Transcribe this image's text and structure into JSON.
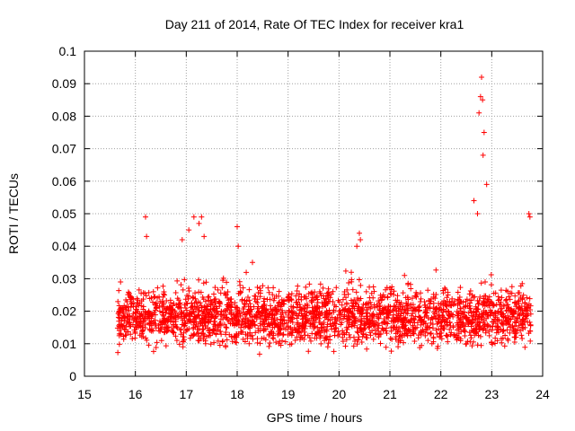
{
  "chart_data": {
    "type": "scatter",
    "title": "Day 211 of 2014, Rate Of TEC Index for receiver kra1",
    "xlabel": "GPS time / hours",
    "ylabel": "ROTI / TECUs",
    "xlim": [
      15,
      24
    ],
    "ylim": [
      0,
      0.1
    ],
    "xticks": [
      "15",
      "16",
      "17",
      "18",
      "19",
      "20",
      "21",
      "22",
      "23",
      "24"
    ],
    "yticks": [
      "0",
      "0.01",
      "0.02",
      "0.03",
      "0.04",
      "0.05",
      "0.06",
      "0.07",
      "0.08",
      "0.09",
      "0.1"
    ],
    "grid": true,
    "marker": "+",
    "series": [
      {
        "name": "ROTI",
        "color": "#ff0000",
        "time_range": [
          15.65,
          23.78
        ],
        "baseline_band": [
          0.006,
          0.03
        ],
        "x": [
          16.2,
          16.22,
          17.15,
          17.3,
          17.05,
          17.25,
          18.0,
          18.02,
          20.4,
          20.42,
          20.35,
          22.65,
          22.72,
          22.75,
          22.78,
          22.8,
          22.82,
          22.85,
          22.83,
          22.9,
          23.75,
          23.73,
          16.92,
          17.35,
          18.3
        ],
        "values": [
          0.049,
          0.043,
          0.049,
          0.049,
          0.045,
          0.047,
          0.046,
          0.04,
          0.044,
          0.042,
          0.04,
          0.054,
          0.05,
          0.081,
          0.086,
          0.092,
          0.085,
          0.075,
          0.068,
          0.059,
          0.049,
          0.05,
          0.042,
          0.043,
          0.035
        ]
      }
    ]
  }
}
